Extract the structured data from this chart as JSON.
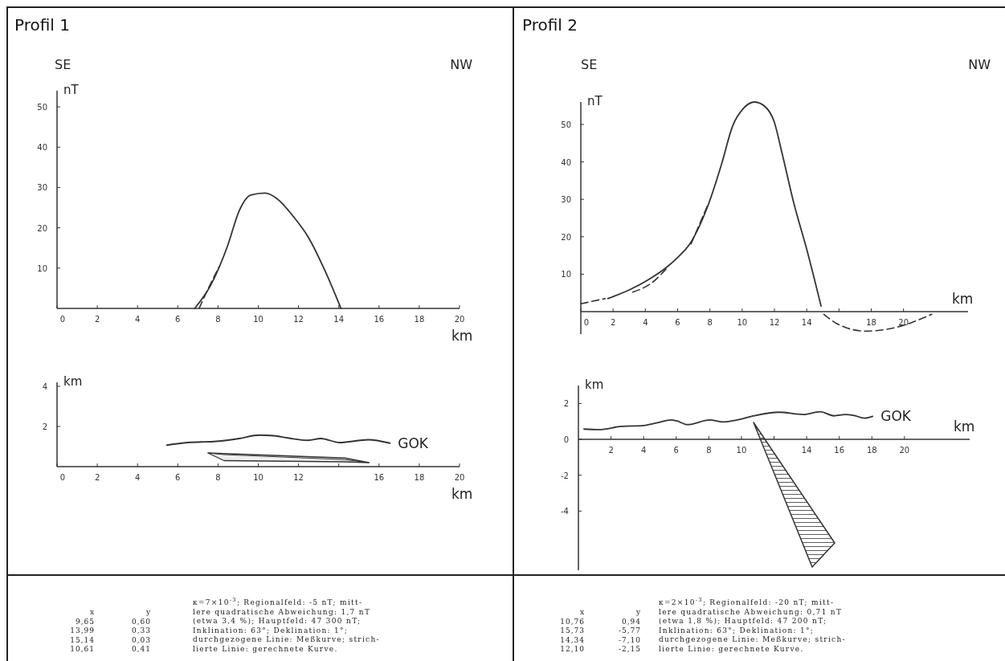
{
  "chart_data": [
    {
      "type": "line",
      "title": "Profil 1",
      "xlabel": "km",
      "ylabel": "nT",
      "xlim": [
        0,
        20
      ],
      "ylim": [
        0,
        54
      ],
      "xticks": [
        0,
        2,
        4,
        6,
        8,
        10,
        12,
        14,
        16,
        18,
        20
      ],
      "yticks": [
        10,
        20,
        30,
        40,
        50
      ],
      "annotations": [
        "SE",
        "NW"
      ],
      "series": [
        {
          "x": [
            6.84,
            7.63,
            8.48,
            9.05,
            9.62,
            10.34,
            10.91,
            11.76,
            12.47,
            13.33,
            14.11
          ],
          "values": [
            0,
            5.7,
            15.6,
            24.2,
            28.1,
            28.6,
            27.3,
            22.7,
            17.8,
            9.2,
            0
          ],
          "color": "#333333",
          "line_style": "solid"
        },
        {
          "x": [
            7.06,
            7.5,
            8.05
          ],
          "values": [
            0,
            4.8,
            10.3
          ],
          "color": "#333333",
          "line_style": "dashed"
        }
      ]
    },
    {
      "type": "line",
      "xlabel": "km",
      "ylabel": "km",
      "xlim": [
        0,
        20
      ],
      "ylim": [
        0,
        4.2
      ],
      "xticks": [
        0,
        2,
        4,
        6,
        8,
        10,
        12,
        {
          "value": 14,
          "label": null
        },
        16,
        18,
        20
      ],
      "yticks": [
        2,
        4
      ],
      "annotations": [
        "x",
        "y",
        "9,65",
        "0,60",
        "13,99",
        "0,33",
        "15,14",
        "0,03",
        "10,61",
        "0,41",
        "κ=7×10$^{-3}$; Regionalfeld: -5 nT; mitt-",
        "lere quadratische Abweichung: 1,7 nT",
        "(etwa 3,4 %); Hauptfeld: 47 300 nT;",
        "Inklination: 63°; Deklination: 1°;",
        "durchgezogene Linie: Meßkurve; strich-",
        "lierte Linie: gerechnete Kurve."
      ],
      "series": [
        {
          "name": "GOK",
          "x": [
            5.46,
            6.49,
            7.91,
            9.05,
            10.04,
            10.76,
            11.47,
            12.47,
            13.11,
            14.04,
            15.47,
            16.54
          ],
          "values": [
            1.07,
            1.2,
            1.26,
            1.4,
            1.57,
            1.54,
            1.43,
            1.31,
            1.4,
            1.2,
            1.34,
            1.17
          ],
          "color": "#333333"
        },
        {
          "x": [
            7.5,
            8.3,
            14.3,
            15.5
          ],
          "values": [
            0.68,
            0.6,
            0.35,
            0.2
          ],
          "lower": [
            0.68,
            0.3,
            0.24,
            0.2
          ],
          "upper": [
            0.68,
            0.65,
            0.43,
            0.2
          ],
          "color": "#333333"
        }
      ]
    },
    {
      "type": "line",
      "title": "Profil 2",
      "xlabel": "km",
      "ylabel": "nT",
      "xlim": [
        0,
        24
      ],
      "ylim": [
        -6,
        56
      ],
      "xticks": [
        0,
        2,
        4,
        6,
        8,
        10,
        12,
        14,
        {
          "value": 16,
          "label": null
        },
        18,
        20
      ],
      "yticks": [
        10,
        20,
        30,
        40,
        50
      ],
      "annotations": [
        "SE",
        "NW"
      ],
      "series": [
        {
          "x": [
            1.68,
            3.05,
            4.25,
            5.27,
            5.88,
            6.82,
            7.86,
            8.71,
            9.4,
            10.08,
            10.77,
            11.46,
            11.97,
            12.49,
            13.17,
            14.03,
            14.89
          ],
          "values": [
            3.5,
            5.9,
            8.7,
            11.7,
            14.0,
            18.5,
            28.1,
            39.2,
            49.5,
            54.3,
            56.0,
            54.6,
            50.9,
            42.0,
            29.5,
            16.2,
            1.5
          ],
          "color": "#333333",
          "line_style": "solid"
        },
        {
          "x": [
            0,
            1.51,
            1.85,
            3.22,
            4.43,
            5.37,
            6.0,
            6.83,
            7.86,
            11,
            15.06,
            15.92,
            17.63,
            19.35,
            21.75
          ],
          "values": [
            2.1,
            3.5,
            null,
            5.2,
            7.8,
            11.8,
            null,
            18.1,
            28.4,
            null,
            -0.7,
            -3.3,
            -5.2,
            -4.4,
            -0.7
          ],
          "color": "#333333",
          "line_style": "dashed"
        }
      ]
    },
    {
      "type": "line",
      "xlabel": "km",
      "ylabel": "km",
      "xlim": [
        0,
        24
      ],
      "ylim": [
        -7.3,
        3
      ],
      "xticks": [
        2,
        4,
        6,
        8,
        10,
        {
          "value": 12,
          "label": null
        },
        14,
        16,
        18,
        20
      ],
      "yticks": [
        -4,
        -2,
        0,
        2
      ],
      "annotations": [
        "x",
        "y",
        "10,76",
        "0,94",
        "15,73",
        "-5,77",
        "14,34",
        "-7,10",
        "12,10",
        "-2,15",
        "κ=2×10$^{-3}$; Regionalfeld: -20 nT; mitt-",
        "lere quadratische Abweichung: 0,71 nT",
        "(etwa 1,8 %); Hauptfeld: 47 200 nT;",
        "Inklination: 63°; Deklination: 1°;",
        "durchgezogene Linie: Meßkurve; strich-",
        "lierte Linie: gerechnete Kurve."
      ],
      "series": [
        {
          "name": "GOK",
          "x": [
            0.34,
            1.27,
            2.63,
            3.98,
            4.83,
            5.68,
            6.02,
            6.69,
            8.05,
            8.9,
            9.75,
            10.76,
            12.29,
            13.81,
            14.83,
            15.68,
            16.36,
            16.86,
            17.54,
            18.05
          ],
          "values": [
            0.57,
            0.54,
            0.72,
            0.77,
            0.92,
            1.08,
            1.03,
            0.82,
            1.08,
            0.97,
            1.08,
            1.31,
            1.51,
            1.38,
            1.54,
            1.31,
            1.38,
            1.34,
            1.18,
            1.28
          ],
          "color": "#333333"
        }
      ]
    }
  ]
}
